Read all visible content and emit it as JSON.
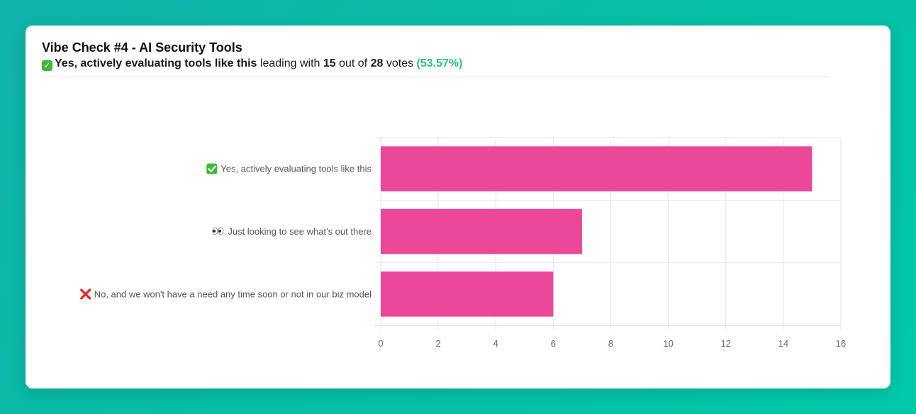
{
  "poll": {
    "title": "Vibe Check #4 - AI Security Tools",
    "leader_icon": "✓",
    "leader_label": "Yes, actively evaluating tools like this",
    "leading_with_text": "leading with",
    "leader_votes": "15",
    "out_of_text": "out of",
    "total_votes": "28",
    "votes_text": "votes",
    "leader_percent": "(53.57%)"
  },
  "colors": {
    "bar": "#ec4899",
    "check_green": "#3fb83a",
    "cross_red": "#e02424",
    "percent_green": "#2fbf7e"
  },
  "chart_data": {
    "type": "bar",
    "orientation": "horizontal",
    "categories": [
      "Yes, actively evaluating tools like this",
      "Just looking to see what's out there",
      "No, and we won't have a need any time soon or not in our biz model"
    ],
    "category_icons": [
      "check-mark-icon",
      "eyes-icon",
      "cross-mark-icon"
    ],
    "values": [
      15,
      7,
      6
    ],
    "xlim": [
      0,
      16
    ],
    "xticks": [
      0,
      2,
      4,
      6,
      8,
      10,
      12,
      14,
      16
    ],
    "grid": true,
    "legend": "none"
  }
}
